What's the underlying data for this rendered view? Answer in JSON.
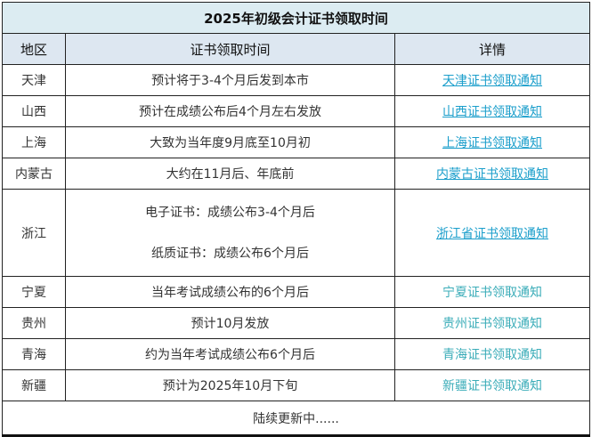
{
  "title": "2025年初级会计证书领取时间",
  "headers": [
    "地区",
    "证书领取时间",
    "详情"
  ],
  "rows": [
    {
      "region": "天津",
      "time": "预计将于3-4个月后发到本市",
      "link": "天津证书领取通知"
    },
    {
      "region": "山西",
      "time": "预计在成绩公布后4个月左右发放",
      "link": "山西证书领取通知"
    },
    {
      "region": "上海",
      "time": "大致为当年度9月底至10月初",
      "link": "上海证书领取通知"
    },
    {
      "region": "内蒙古",
      "time": "大约在11月后、年底前",
      "link": "内蒙古证书领取通知"
    },
    {
      "region": "浙江",
      "time": "电子证书：成绩公布3-4个月后",
      "time2": "纸质证书：成绩公布6个月后",
      "link": "浙江省证书领取通知"
    },
    {
      "region": "宁夏",
      "time": "当年考试成绩公布的6个月后",
      "link": "宁夏证书领取通知"
    },
    {
      "region": "贵州",
      "time": "预计10月发放",
      "link": "贵州证书领取通知"
    },
    {
      "region": "青海",
      "time": "约为当年考试成绩公布6个月后",
      "link": "青海证书领取通知"
    },
    {
      "region": "新疆",
      "time": "预计为2025年10月下旬",
      "link": "新疆证书领取通知"
    }
  ],
  "footer": "陆续更新中......",
  "colors": {
    "link_underlined": "#1a9ecb",
    "link_plain": "#3aacb8",
    "title_bg": "#dcecf2",
    "header_bg": "#dde7f1"
  }
}
